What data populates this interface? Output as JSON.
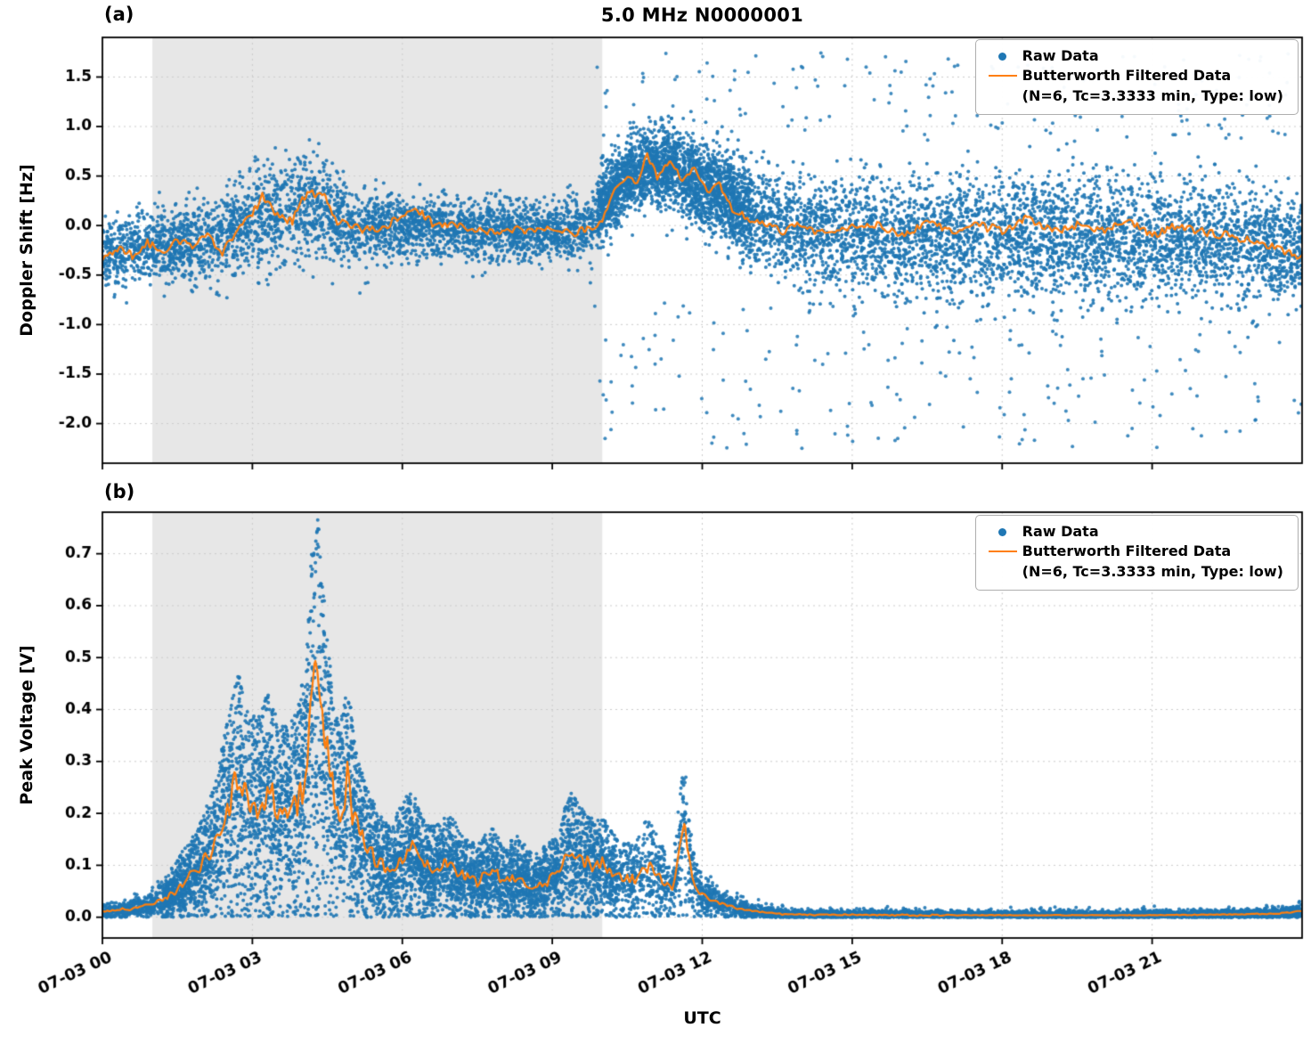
{
  "figure": {
    "xlabel": "UTC",
    "legend": {
      "raw": "Raw Data",
      "filtered": "Butterworth Filtered Data",
      "filtered_params": "(N=6, Tc=3.3333 min, Type: low)"
    },
    "colors": {
      "raw": "#1f77b4",
      "filtered": "#ff7f0e",
      "shade": "#e7e7e7",
      "grid": "#cccccc",
      "text": "#000000"
    }
  },
  "chart_data": [
    {
      "panel": "a",
      "panel_label": "(a)",
      "type": "scatter",
      "title": "5.0 MHz N0000001",
      "ylabel": "Doppler Shift [Hz]",
      "xlim": [
        0,
        24
      ],
      "ylim": [
        -2.4,
        1.9
      ],
      "yticks": [
        -2.0,
        -1.5,
        -1.0,
        -0.5,
        0.0,
        0.5,
        1.0,
        1.5
      ],
      "xticks": [
        0,
        3,
        6,
        9,
        12,
        15,
        18,
        21
      ],
      "xtick_labels": [
        "07-03 00",
        "07-03 03",
        "07-03 06",
        "07-03 09",
        "07-03 12",
        "07-03 15",
        "07-03 18",
        "07-03 21"
      ],
      "shaded_x": [
        1.0,
        10.0
      ],
      "n_points": 9000,
      "dense_region": {
        "x_range": [
          9.9,
          13.0
        ],
        "count": 1500
      },
      "outliers": {
        "x_range": [
          9.8,
          24.0
        ],
        "count": 340,
        "y_low": [
          -2.25,
          -0.75
        ],
        "y_high": [
          0.85,
          1.75
        ]
      },
      "series": {
        "filtered": {
          "name": "Butterworth Filtered Data (N=6, Tc=3.3333 min, Type: low)",
          "x": [
            0,
            0.3,
            0.6,
            0.9,
            1.2,
            1.5,
            1.8,
            2.1,
            2.4,
            2.7,
            3.0,
            3.2,
            3.5,
            3.8,
            4.0,
            4.2,
            4.45,
            4.7,
            4.9,
            5.2,
            5.6,
            6.0,
            6.3,
            6.6,
            7.0,
            7.4,
            7.8,
            8.2,
            8.6,
            9.0,
            9.4,
            9.7,
            10.0,
            10.2,
            10.45,
            10.7,
            10.9,
            11.1,
            11.35,
            11.6,
            11.85,
            12.1,
            12.35,
            12.6,
            12.9,
            13.2,
            13.6,
            14.0,
            14.5,
            15.0,
            15.5,
            16.0,
            16.5,
            17.0,
            17.5,
            18.0,
            18.5,
            19.0,
            19.5,
            20.0,
            20.5,
            21.0,
            21.5,
            22.0,
            22.5,
            23.0,
            23.5,
            24.0
          ],
          "y": [
            -0.33,
            -0.22,
            -0.3,
            -0.18,
            -0.25,
            -0.15,
            -0.22,
            -0.1,
            -0.28,
            -0.02,
            0.12,
            0.3,
            0.1,
            0.05,
            0.28,
            0.33,
            0.28,
            0.05,
            0.0,
            -0.05,
            -0.02,
            0.08,
            0.15,
            0.03,
            0.0,
            -0.03,
            -0.06,
            -0.04,
            -0.06,
            -0.05,
            -0.08,
            -0.04,
            0.05,
            0.3,
            0.5,
            0.45,
            0.72,
            0.5,
            0.65,
            0.45,
            0.58,
            0.35,
            0.42,
            0.18,
            0.08,
            0.02,
            -0.05,
            0.0,
            -0.1,
            -0.03,
            0.02,
            -0.1,
            0.03,
            -0.06,
            0.0,
            -0.05,
            0.08,
            -0.06,
            0.0,
            -0.05,
            0.04,
            -0.1,
            0.0,
            -0.06,
            -0.1,
            -0.15,
            -0.24,
            -0.33
          ]
        },
        "raw_envelope": {
          "name": "Raw Data",
          "x": [
            0,
            1,
            2,
            2.5,
            3,
            3.5,
            4,
            4.5,
            5,
            6,
            7,
            8,
            9,
            9.7,
            10,
            10.5,
            11,
            11.5,
            12,
            12.5,
            13,
            14,
            15,
            16,
            17,
            18,
            19,
            20,
            21,
            22,
            23,
            24
          ],
          "center": [
            -0.28,
            -0.2,
            -0.18,
            -0.1,
            0.05,
            0.1,
            0.2,
            0.15,
            -0.02,
            -0.03,
            -0.02,
            -0.05,
            -0.06,
            -0.05,
            0.2,
            0.5,
            0.6,
            0.55,
            0.4,
            0.3,
            0.1,
            -0.05,
            -0.1,
            -0.1,
            -0.12,
            -0.12,
            -0.12,
            -0.12,
            -0.15,
            -0.15,
            -0.18,
            -0.25
          ],
          "spread": [
            0.33,
            0.33,
            0.35,
            0.42,
            0.5,
            0.45,
            0.5,
            0.45,
            0.35,
            0.3,
            0.3,
            0.3,
            0.28,
            0.3,
            0.35,
            0.35,
            0.35,
            0.38,
            0.4,
            0.42,
            0.48,
            0.52,
            0.55,
            0.58,
            0.6,
            0.6,
            0.6,
            0.6,
            0.6,
            0.58,
            0.55,
            0.5
          ]
        }
      }
    },
    {
      "panel": "b",
      "panel_label": "(b)",
      "type": "scatter",
      "title": "",
      "ylabel": "Peak Voltage [V]",
      "xlim": [
        0,
        24
      ],
      "ylim": [
        -0.04,
        0.78
      ],
      "yticks": [
        0.0,
        0.1,
        0.2,
        0.3,
        0.4,
        0.5,
        0.6,
        0.7
      ],
      "xticks": [
        0,
        3,
        6,
        9,
        12,
        15,
        18,
        21
      ],
      "xtick_labels": [
        "07-03 00",
        "07-03 03",
        "07-03 06",
        "07-03 09",
        "07-03 12",
        "07-03 15",
        "07-03 18",
        "07-03 21"
      ],
      "shaded_x": [
        1.0,
        10.0
      ],
      "n_points": 9000,
      "dense_region": {
        "x_range": [
          1.2,
          10.3
        ],
        "count": 3000
      },
      "outliers": null,
      "series": {
        "filtered": {
          "name": "Butterworth Filtered Data (N=6, Tc=3.3333 min, Type: low)",
          "x": [
            0,
            0.5,
            1.0,
            1.4,
            1.8,
            2.0,
            2.2,
            2.4,
            2.6,
            2.75,
            2.9,
            3.1,
            3.3,
            3.5,
            3.7,
            3.9,
            4.05,
            4.2,
            4.3,
            4.45,
            4.6,
            4.75,
            4.9,
            5.05,
            5.2,
            5.4,
            5.6,
            5.8,
            6.0,
            6.2,
            6.4,
            6.6,
            6.8,
            7.0,
            7.2,
            7.5,
            7.8,
            8.0,
            8.3,
            8.6,
            8.9,
            9.1,
            9.35,
            9.6,
            9.8,
            10.0,
            10.3,
            10.6,
            10.9,
            11.1,
            11.4,
            11.65,
            11.8,
            12.0,
            12.3,
            12.6,
            13.0,
            13.5,
            14.0,
            15.0,
            16.0,
            17.0,
            18.0,
            19.0,
            20.0,
            21.0,
            22.0,
            23.0,
            23.6,
            24.0
          ],
          "y": [
            0.012,
            0.015,
            0.025,
            0.045,
            0.08,
            0.1,
            0.13,
            0.18,
            0.24,
            0.27,
            0.22,
            0.21,
            0.24,
            0.21,
            0.2,
            0.22,
            0.27,
            0.42,
            0.44,
            0.35,
            0.24,
            0.2,
            0.26,
            0.18,
            0.15,
            0.12,
            0.1,
            0.09,
            0.12,
            0.13,
            0.1,
            0.09,
            0.1,
            0.1,
            0.08,
            0.07,
            0.09,
            0.07,
            0.08,
            0.06,
            0.07,
            0.08,
            0.13,
            0.11,
            0.1,
            0.1,
            0.08,
            0.07,
            0.1,
            0.08,
            0.05,
            0.17,
            0.07,
            0.04,
            0.03,
            0.02,
            0.012,
            0.007,
            0.005,
            0.005,
            0.004,
            0.004,
            0.004,
            0.004,
            0.004,
            0.004,
            0.005,
            0.006,
            0.008,
            0.012
          ]
        },
        "raw_envelope": {
          "name": "Raw Data",
          "x": [
            0,
            0.5,
            1.0,
            1.4,
            1.8,
            2.0,
            2.2,
            2.4,
            2.6,
            2.75,
            2.9,
            3.1,
            3.3,
            3.5,
            3.7,
            3.9,
            4.05,
            4.2,
            4.3,
            4.45,
            4.6,
            4.75,
            4.9,
            5.05,
            5.2,
            5.4,
            5.6,
            5.8,
            6.0,
            6.2,
            6.4,
            6.6,
            6.8,
            7.0,
            7.2,
            7.5,
            7.8,
            8.0,
            8.3,
            8.6,
            8.9,
            9.1,
            9.35,
            9.6,
            9.8,
            10.0,
            10.3,
            10.6,
            10.9,
            11.1,
            11.4,
            11.65,
            11.8,
            12.0,
            12.3,
            12.6,
            13.0,
            13.5,
            14.0,
            15.0,
            16.0,
            17.0,
            18.0,
            19.0,
            20.0,
            21.0,
            22.0,
            23.0,
            23.6,
            24.0
          ],
          "center": [
            0.012,
            0.015,
            0.025,
            0.045,
            0.08,
            0.1,
            0.13,
            0.18,
            0.24,
            0.27,
            0.22,
            0.21,
            0.24,
            0.21,
            0.2,
            0.22,
            0.27,
            0.42,
            0.44,
            0.35,
            0.24,
            0.2,
            0.26,
            0.18,
            0.15,
            0.12,
            0.1,
            0.09,
            0.12,
            0.13,
            0.1,
            0.09,
            0.1,
            0.1,
            0.08,
            0.07,
            0.09,
            0.07,
            0.08,
            0.06,
            0.07,
            0.08,
            0.13,
            0.11,
            0.1,
            0.1,
            0.08,
            0.07,
            0.1,
            0.08,
            0.05,
            0.17,
            0.07,
            0.04,
            0.03,
            0.02,
            0.012,
            0.007,
            0.005,
            0.005,
            0.004,
            0.004,
            0.004,
            0.004,
            0.004,
            0.004,
            0.005,
            0.006,
            0.008,
            0.012
          ],
          "spread_rel": 0.5,
          "spread_abs": 0.004
        }
      }
    }
  ],
  "render": {
    "seed": 1234,
    "dot_radius": 2.0,
    "line_jitter_a": 0.045,
    "line_jitter_b_rel": 0.16
  }
}
